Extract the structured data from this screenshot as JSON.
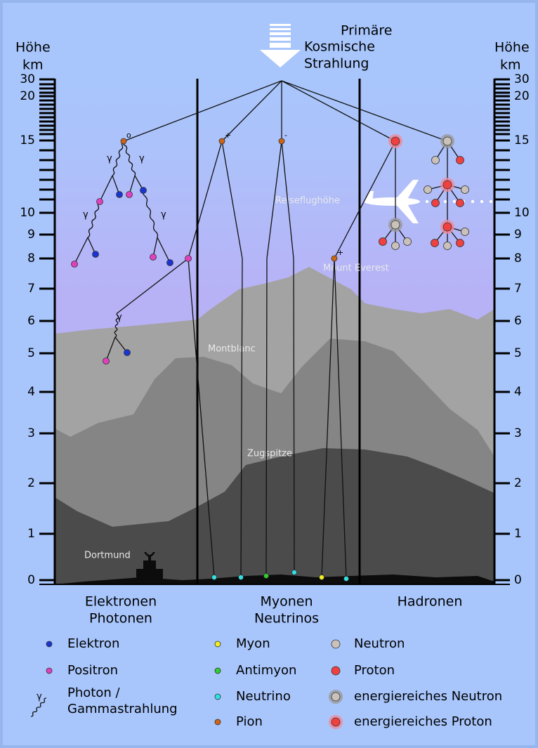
{
  "header": {
    "title_lines": [
      "Primäre",
      "Kosmische",
      "Strahlung"
    ]
  },
  "axes": {
    "label_lines": [
      "Höhe",
      "km"
    ],
    "ticks": [
      30,
      20,
      15,
      10,
      9,
      8,
      7,
      6,
      5,
      4,
      3,
      2,
      1,
      0
    ]
  },
  "places": [
    "Reiseflughöhe",
    "Mount Everest",
    "Montblanc",
    "Zugspitze",
    "Dortmund"
  ],
  "columns": [
    [
      "Elektronen",
      "Photonen"
    ],
    [
      "Myonen",
      "Neutrinos"
    ],
    [
      "Hadronen"
    ]
  ],
  "charges": [
    "o",
    "+",
    "-",
    "+"
  ],
  "photon_symbol": "γ",
  "legend": [
    {
      "label": [
        "Elektron"
      ],
      "color": "#1a34d0"
    },
    {
      "label": [
        "Positron"
      ],
      "color": "#e040c0"
    },
    {
      "label": [
        "Photon /",
        "Gammastrahlung"
      ]
    },
    {
      "label": [
        "Myon"
      ],
      "color": "#f2ee22"
    },
    {
      "label": [
        "Antimyon"
      ],
      "color": "#2fcf2f"
    },
    {
      "label": [
        "Neutrino"
      ],
      "color": "#30e2e2"
    },
    {
      "label": [
        "Pion"
      ],
      "color": "#cf6414"
    },
    {
      "label": [
        "Neutron"
      ],
      "color": "#cac2ba"
    },
    {
      "label": [
        "Proton"
      ],
      "color": "#f04040"
    },
    {
      "label": [
        "energiereiches Neutron"
      ],
      "color": "#cac2ba"
    },
    {
      "label": [
        "energiereiches Proton"
      ],
      "color": "#f04040"
    }
  ]
}
